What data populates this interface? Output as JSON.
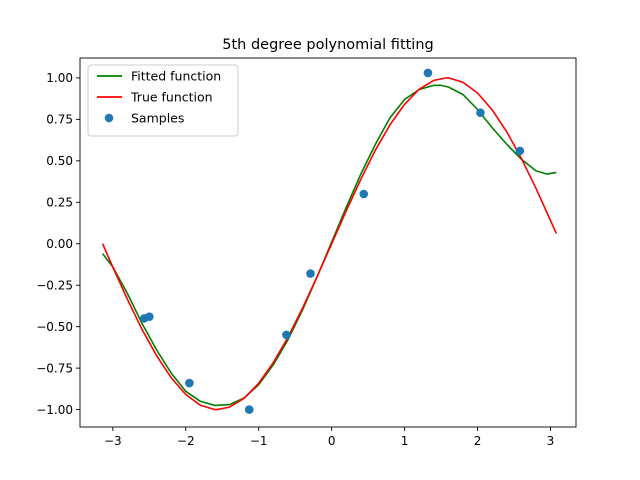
{
  "chart_data": {
    "type": "line",
    "title": "5th degree polynomial fitting",
    "xlabel": "",
    "ylabel": "",
    "xlim": [
      -3.45,
      3.35
    ],
    "ylim": [
      -1.105,
      1.12
    ],
    "xticks": [
      -3,
      -2,
      -1,
      0,
      1,
      2,
      3
    ],
    "xtick_labels": [
      "−3",
      "−2",
      "−1",
      "0",
      "1",
      "2",
      "3"
    ],
    "yticks": [
      -1.0,
      -0.75,
      -0.5,
      -0.25,
      0.0,
      0.25,
      0.5,
      0.75,
      1.0
    ],
    "ytick_labels": [
      "−1.00",
      "−0.75",
      "−0.50",
      "−0.25",
      "0.00",
      "0.25",
      "0.50",
      "0.75",
      "1.00"
    ],
    "grid": false,
    "legend": "top-left",
    "series": [
      {
        "name": "Fitted function",
        "kind": "line",
        "color": "#008000",
        "x": [
          -3.14,
          -3.0,
          -2.8,
          -2.6,
          -2.4,
          -2.2,
          -2.0,
          -1.8,
          -1.6,
          -1.4,
          -1.2,
          -1.0,
          -0.8,
          -0.6,
          -0.4,
          -0.2,
          0.0,
          0.2,
          0.4,
          0.6,
          0.8,
          1.0,
          1.2,
          1.4,
          1.5,
          1.6,
          1.8,
          2.0,
          2.2,
          2.4,
          2.6,
          2.8,
          2.95,
          3.08
        ],
        "y": [
          -0.06,
          -0.14,
          -0.3,
          -0.48,
          -0.64,
          -0.78,
          -0.89,
          -0.95,
          -0.975,
          -0.97,
          -0.93,
          -0.85,
          -0.73,
          -0.58,
          -0.4,
          -0.2,
          0.01,
          0.22,
          0.42,
          0.6,
          0.76,
          0.87,
          0.93,
          0.955,
          0.955,
          0.945,
          0.9,
          0.81,
          0.7,
          0.6,
          0.51,
          0.44,
          0.42,
          0.43
        ]
      },
      {
        "name": "True function",
        "kind": "line",
        "color": "#ff0000",
        "x": [
          -3.14,
          -3.0,
          -2.8,
          -2.6,
          -2.4,
          -2.2,
          -2.0,
          -1.8,
          -1.6,
          -1.5708,
          -1.4,
          -1.2,
          -1.0,
          -0.8,
          -0.6,
          -0.4,
          -0.2,
          0.0,
          0.2,
          0.4,
          0.6,
          0.8,
          1.0,
          1.2,
          1.4,
          1.5708,
          1.6,
          1.8,
          2.0,
          2.2,
          2.4,
          2.6,
          2.8,
          3.0,
          3.08
        ],
        "y": [
          0.0,
          -0.141,
          -0.335,
          -0.516,
          -0.675,
          -0.808,
          -0.909,
          -0.974,
          -1.0,
          -1.0,
          -0.985,
          -0.932,
          -0.841,
          -0.717,
          -0.565,
          -0.389,
          -0.199,
          0.0,
          0.199,
          0.389,
          0.565,
          0.717,
          0.841,
          0.932,
          0.985,
          1.0,
          1.0,
          0.974,
          0.909,
          0.808,
          0.675,
          0.516,
          0.335,
          0.141,
          0.062
        ]
      },
      {
        "name": "Samples",
        "kind": "scatter",
        "color": "#1f77b4",
        "x": [
          -2.57,
          -2.5,
          -1.95,
          -1.13,
          -0.62,
          -0.29,
          0.44,
          1.32,
          2.04,
          2.58
        ],
        "y": [
          -0.45,
          -0.44,
          -0.84,
          -1.0,
          -0.55,
          -0.18,
          0.3,
          1.03,
          0.79,
          0.56
        ]
      }
    ]
  }
}
